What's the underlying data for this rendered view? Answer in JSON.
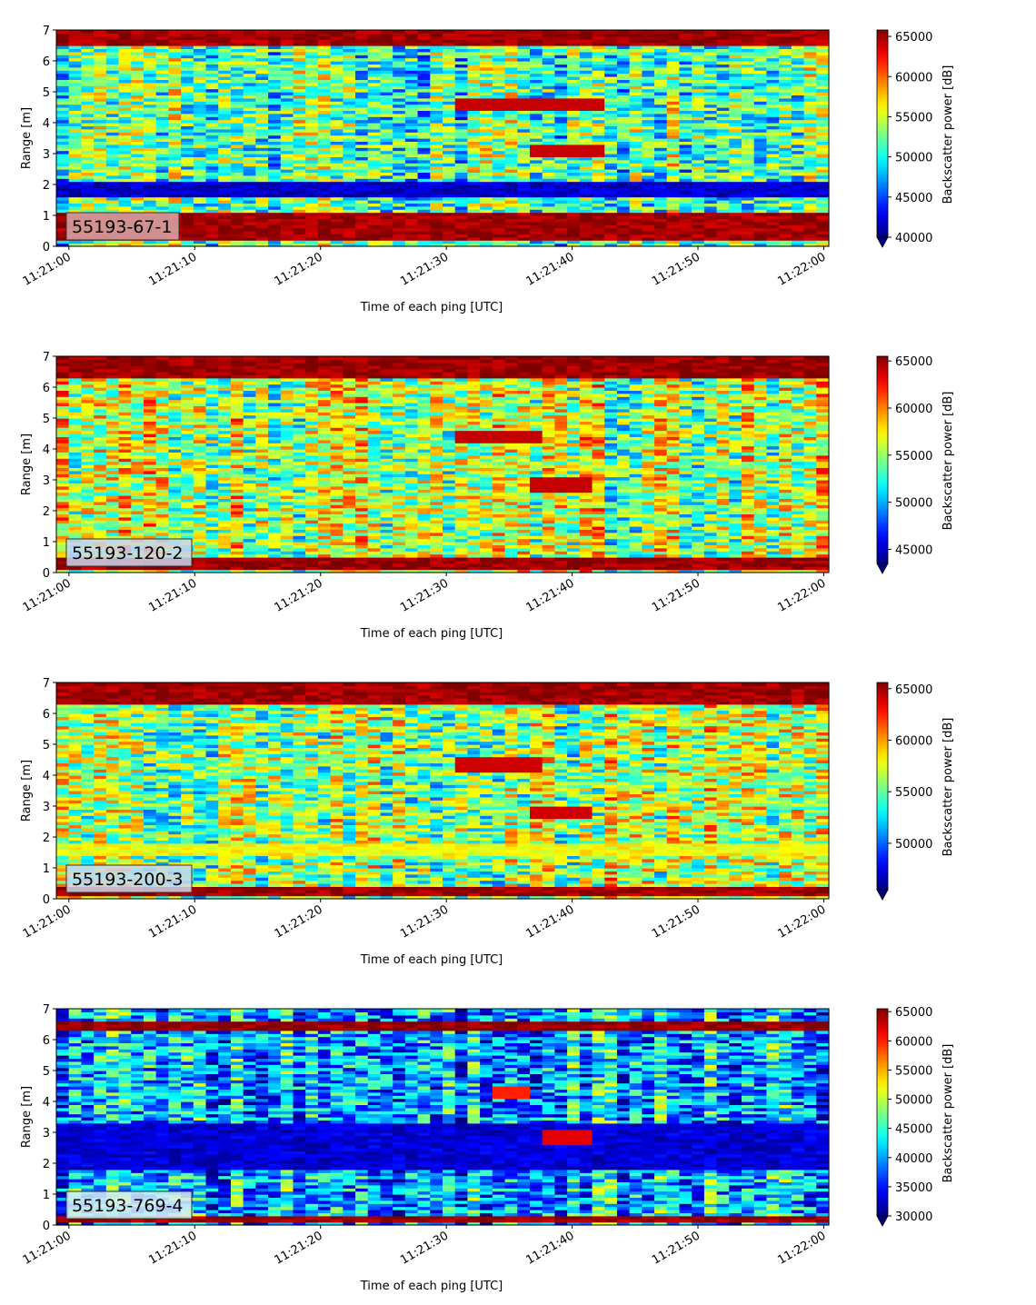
{
  "chart_data": [
    {
      "type": "heatmap",
      "label_box": "55193-67-1",
      "label_box_color": "#d9a9a9",
      "xlabel": "Time of each ping [UTC]",
      "ylabel": "Range [m]",
      "x_tick_labels": [
        "11:21:00",
        "11:21:10",
        "11:21:20",
        "11:21:30",
        "11:21:40",
        "11:21:50",
        "11:22:00"
      ],
      "x_tick_seconds": [
        0,
        10,
        20,
        30,
        40,
        50,
        60
      ],
      "xlim_seconds": [
        -1,
        60.4
      ],
      "ylim": [
        0,
        7
      ],
      "y_ticks": [
        0,
        1,
        2,
        3,
        4,
        5,
        6,
        7
      ],
      "colorbar": {
        "label": "Backscatter power [dB]",
        "colormap": "jet",
        "ticks": [
          40000,
          45000,
          50000,
          55000,
          60000,
          65000
        ],
        "vmin": 40000,
        "vmax": 65800,
        "extend": "min"
      },
      "features": [
        {
          "desc": "strong return band",
          "y_range_m": [
            0.2,
            1.1
          ],
          "level": 65000
        },
        {
          "desc": "low return band",
          "y_range_m": [
            1.6,
            2.1
          ],
          "level": 42000
        },
        {
          "desc": "surface band",
          "y_range_m": [
            6.5,
            7.0
          ],
          "level": 65000
        },
        {
          "desc": "target",
          "t_seconds": [
            31,
            43
          ],
          "y_m": 4.6,
          "level": 64000
        },
        {
          "desc": "target",
          "t_seconds": [
            37,
            43
          ],
          "y_m": 3.1,
          "level": 64000
        }
      ]
    },
    {
      "type": "heatmap",
      "label_box": "55193-120-2",
      "label_box_color": "#cbd6ec",
      "xlabel": "Time of each ping [UTC]",
      "ylabel": "Range [m]",
      "x_tick_labels": [
        "11:21:00",
        "11:21:10",
        "11:21:20",
        "11:21:30",
        "11:21:40",
        "11:21:50",
        "11:22:00"
      ],
      "x_tick_seconds": [
        0,
        10,
        20,
        30,
        40,
        50,
        60
      ],
      "xlim_seconds": [
        -1,
        60.4
      ],
      "ylim": [
        0,
        7
      ],
      "y_ticks": [
        0,
        1,
        2,
        3,
        4,
        5,
        6,
        7
      ],
      "colorbar": {
        "label": "Backscatter power [dB]",
        "colormap": "jet",
        "ticks": [
          45000,
          50000,
          55000,
          60000,
          65000
        ],
        "vmin": 43500,
        "vmax": 65500,
        "extend": "min"
      },
      "features": [
        {
          "desc": "strong return band",
          "y_range_m": [
            0.1,
            0.5
          ],
          "level": 65000
        },
        {
          "desc": "surface band",
          "y_range_m": [
            6.3,
            7.0
          ],
          "level": 65000
        },
        {
          "desc": "target",
          "t_seconds": [
            31,
            38
          ],
          "y_m": 4.4,
          "level": 64000
        },
        {
          "desc": "target",
          "t_seconds": [
            37,
            42
          ],
          "y_m": 2.85,
          "level": 64000
        }
      ]
    },
    {
      "type": "heatmap",
      "label_box": "55193-200-3",
      "label_box_color": "#cbd6ec",
      "xlabel": "Time of each ping [UTC]",
      "ylabel": "Range [m]",
      "x_tick_labels": [
        "11:21:00",
        "11:21:10",
        "11:21:20",
        "11:21:30",
        "11:21:40",
        "11:21:50",
        "11:22:00"
      ],
      "x_tick_seconds": [
        0,
        10,
        20,
        30,
        40,
        50,
        60
      ],
      "xlim_seconds": [
        -1,
        60.4
      ],
      "ylim": [
        0,
        7
      ],
      "y_ticks": [
        0,
        1,
        2,
        3,
        4,
        5,
        6,
        7
      ],
      "colorbar": {
        "label": "Backscatter power [dB]",
        "colormap": "jet",
        "ticks": [
          50000,
          55000,
          60000,
          65000
        ],
        "vmin": 45500,
        "vmax": 65600,
        "extend": "min"
      },
      "features": [
        {
          "desc": "strong return band",
          "y_range_m": [
            0.1,
            0.4
          ],
          "level": 65000
        },
        {
          "desc": "bright band",
          "y_range_m": [
            1.4,
            1.8
          ],
          "level": 58000
        },
        {
          "desc": "surface band",
          "y_range_m": [
            6.3,
            7.0
          ],
          "level": 65000
        },
        {
          "desc": "target",
          "t_seconds": [
            31,
            38
          ],
          "y_m": 4.35,
          "level": 64000
        },
        {
          "desc": "target",
          "t_seconds": [
            37,
            42
          ],
          "y_m": 2.8,
          "level": 64000
        }
      ]
    },
    {
      "type": "heatmap",
      "label_box": "55193-769-4",
      "label_box_color": "#d7ecf5",
      "xlabel": "Time of each ping [UTC]",
      "ylabel": "Range [m]",
      "x_tick_labels": [
        "11:21:00",
        "11:21:10",
        "11:21:20",
        "11:21:30",
        "11:21:40",
        "11:21:50",
        "11:22:00"
      ],
      "x_tick_seconds": [
        0,
        10,
        20,
        30,
        40,
        50,
        60
      ],
      "xlim_seconds": [
        -1,
        60.4
      ],
      "ylim": [
        0,
        7
      ],
      "y_ticks": [
        0,
        1,
        2,
        3,
        4,
        5,
        6,
        7
      ],
      "colorbar": {
        "label": "Backscatter power [dB]",
        "colormap": "jet",
        "ticks": [
          30000,
          35000,
          40000,
          45000,
          50000,
          55000,
          60000,
          65000
        ],
        "vmin": 30000,
        "vmax": 65500,
        "extend": "min"
      },
      "features": [
        {
          "desc": "strong return band",
          "y_range_m": [
            0.1,
            0.3
          ],
          "level": 65000
        },
        {
          "desc": "low return band",
          "y_range_m": [
            1.8,
            3.3
          ],
          "level": 33000
        },
        {
          "desc": "surface band",
          "y_range_m": [
            6.35,
            6.6
          ],
          "level": 65000
        },
        {
          "desc": "target",
          "t_seconds": [
            34,
            37
          ],
          "y_m": 4.3,
          "level": 60000
        },
        {
          "desc": "target",
          "t_seconds": [
            38,
            42
          ],
          "y_m": 2.85,
          "level": 62000
        }
      ]
    }
  ]
}
